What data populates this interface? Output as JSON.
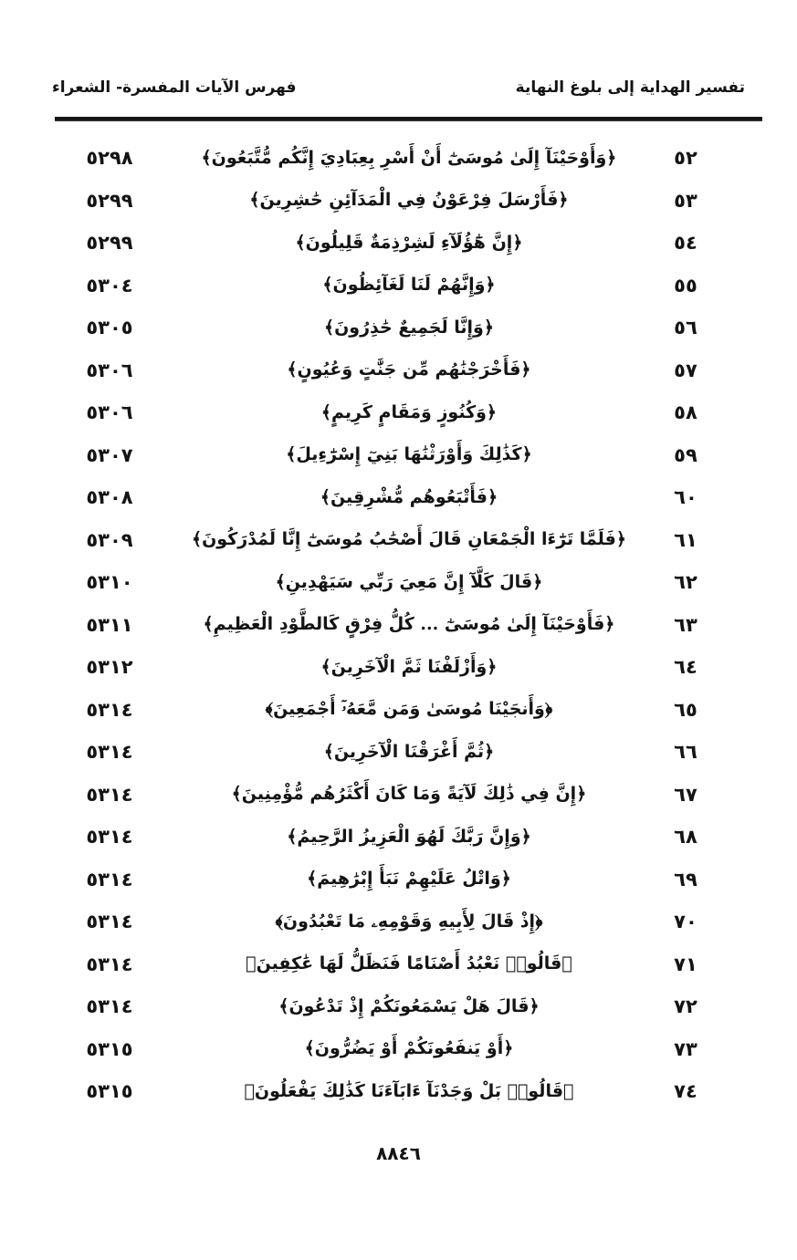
{
  "header": {
    "right_title": "تفسير الهداية إلى بلوغ النهاية",
    "left_title": "فهرس الآيات المفسرة- الشعراء"
  },
  "table": {
    "columns": [
      "verse_number",
      "verse_text",
      "page_number"
    ],
    "rows": [
      {
        "verse_no": "٥٢",
        "verse": "﴿وَأَوْحَيْنَآ إِلَىٰ مُوسَىٰٓ أَنْ أَسْرِ بِعِبَادِيَ إِنَّكُم مُّتَّبَعُونَ﴾",
        "page": "٥٢٩٨"
      },
      {
        "verse_no": "٥٣",
        "verse": "﴿فَأَرْسَلَ فِرْعَوْنُ فِي الْمَدَآئِنِ حَٰشِرِينَ﴾",
        "page": "٥٢٩٩"
      },
      {
        "verse_no": "٥٤",
        "verse": "﴿إِنَّ هَٰٓؤُلَآءِ لَشِرْذِمَةٌ قَلِيلُونَ﴾",
        "page": "٥٢٩٩"
      },
      {
        "verse_no": "٥٥",
        "verse": "﴿وَإِنَّهُمْ لَنَا لَغَآئِظُونَ﴾",
        "page": "٥٣٠٤"
      },
      {
        "verse_no": "٥٦",
        "verse": "﴿وَإِنَّا لَجَمِيعٌ حَٰذِرُونَ﴾",
        "page": "٥٣٠٥"
      },
      {
        "verse_no": "٥٧",
        "verse": "﴿فَأَخْرَجْنَٰهُم مِّن جَنَّٰتٍ وَعُيُونٍ﴾",
        "page": "٥٣٠٦"
      },
      {
        "verse_no": "٥٨",
        "verse": "﴿وَكُنُوزٍ وَمَقَامٍ كَرِيمٍ﴾",
        "page": "٥٣٠٦"
      },
      {
        "verse_no": "٥٩",
        "verse": "﴿كَذَٰلِكَ وَأَوْرَثْنَٰهَا بَنِيٓ إِسْرَٰٓءِيلَ﴾",
        "page": "٥٣٠٧"
      },
      {
        "verse_no": "٦٠",
        "verse": "﴿فَأَتْبَعُوهُم مُّشْرِقِينَ﴾",
        "page": "٥٣٠٨"
      },
      {
        "verse_no": "٦١",
        "verse": "﴿فَلَمَّا تَرَٰٓءَا الْجَمْعَانِ قَالَ أَصْحَٰبُ مُوسَىٰٓ إِنَّا لَمُدْرَكُونَ﴾",
        "page": "٥٣٠٩"
      },
      {
        "verse_no": "٦٢",
        "verse": "﴿قَالَ كَلَّآ إِنَّ مَعِيَ رَبِّي سَيَهْدِينِ﴾",
        "page": "٥٣١٠"
      },
      {
        "verse_no": "٦٣",
        "verse": "﴿فَأَوْحَيْنَآ إِلَىٰ مُوسَىٰٓ ... كُلُّ فِرْقٍ كَالطَّوْدِ الْعَظِيمِ﴾",
        "page": "٥٣١١"
      },
      {
        "verse_no": "٦٤",
        "verse": "﴿وَأَزْلَفْنَا ثَمَّ الْآخَرِينَ﴾",
        "page": "٥٣١٢"
      },
      {
        "verse_no": "٦٥",
        "verse": "﴿وَأَنجَيْنَا مُوسَىٰ وَمَن مَّعَهُۥٓ أَجْمَعِينَ﴾",
        "page": "٥٣١٤"
      },
      {
        "verse_no": "٦٦",
        "verse": "﴿ثُمَّ أَغْرَقْنَا الْآخَرِينَ﴾",
        "page": "٥٣١٤"
      },
      {
        "verse_no": "٦٧",
        "verse": "﴿إِنَّ فِي ذَٰلِكَ لَآيَةً وَمَا كَانَ أَكْثَرُهُم مُّؤْمِنِينَ﴾",
        "page": "٥٣١٤"
      },
      {
        "verse_no": "٦٨",
        "verse": "﴿وَإِنَّ رَبَّكَ لَهُوَ الْعَزِيزُ الرَّحِيمُ﴾",
        "page": "٥٣١٤"
      },
      {
        "verse_no": "٦٩",
        "verse": "﴿وَاتْلُ عَلَيْهِمْ نَبَأَ إِبْرَٰهِيمَ﴾",
        "page": "٥٣١٤"
      },
      {
        "verse_no": "٧٠",
        "verse": "﴿إِذْ قَالَ لِأَبِيهِ وَقَوْمِهِۦ مَا تَعْبُدُونَ﴾",
        "page": "٥٣١٤"
      },
      {
        "verse_no": "٧١",
        "verse": "﴿قَالُوا۟ نَعْبُدُ أَصْنَامًا فَنَظَلُّ لَهَا عَٰكِفِينَ﴾",
        "page": "٥٣١٤"
      },
      {
        "verse_no": "٧٢",
        "verse": "﴿قَالَ هَلْ يَسْمَعُونَكُمْ إِذْ تَدْعُونَ﴾",
        "page": "٥٣١٤"
      },
      {
        "verse_no": "٧٣",
        "verse": "﴿أَوْ يَنفَعُونَكُمْ أَوْ يَضُرُّونَ﴾",
        "page": "٥٣١٥"
      },
      {
        "verse_no": "٧٤",
        "verse": "﴿قَالُوا۟ بَلْ وَجَدْنَآ ءَابَآءَنَا كَذَٰلِكَ يَفْعَلُونَ﴾",
        "page": "٥٣١٥"
      }
    ]
  },
  "footer": {
    "page_number": "٨٨٤٦"
  },
  "colors": {
    "background": "#ffffff",
    "text": "#141414",
    "rule": "#161616"
  }
}
